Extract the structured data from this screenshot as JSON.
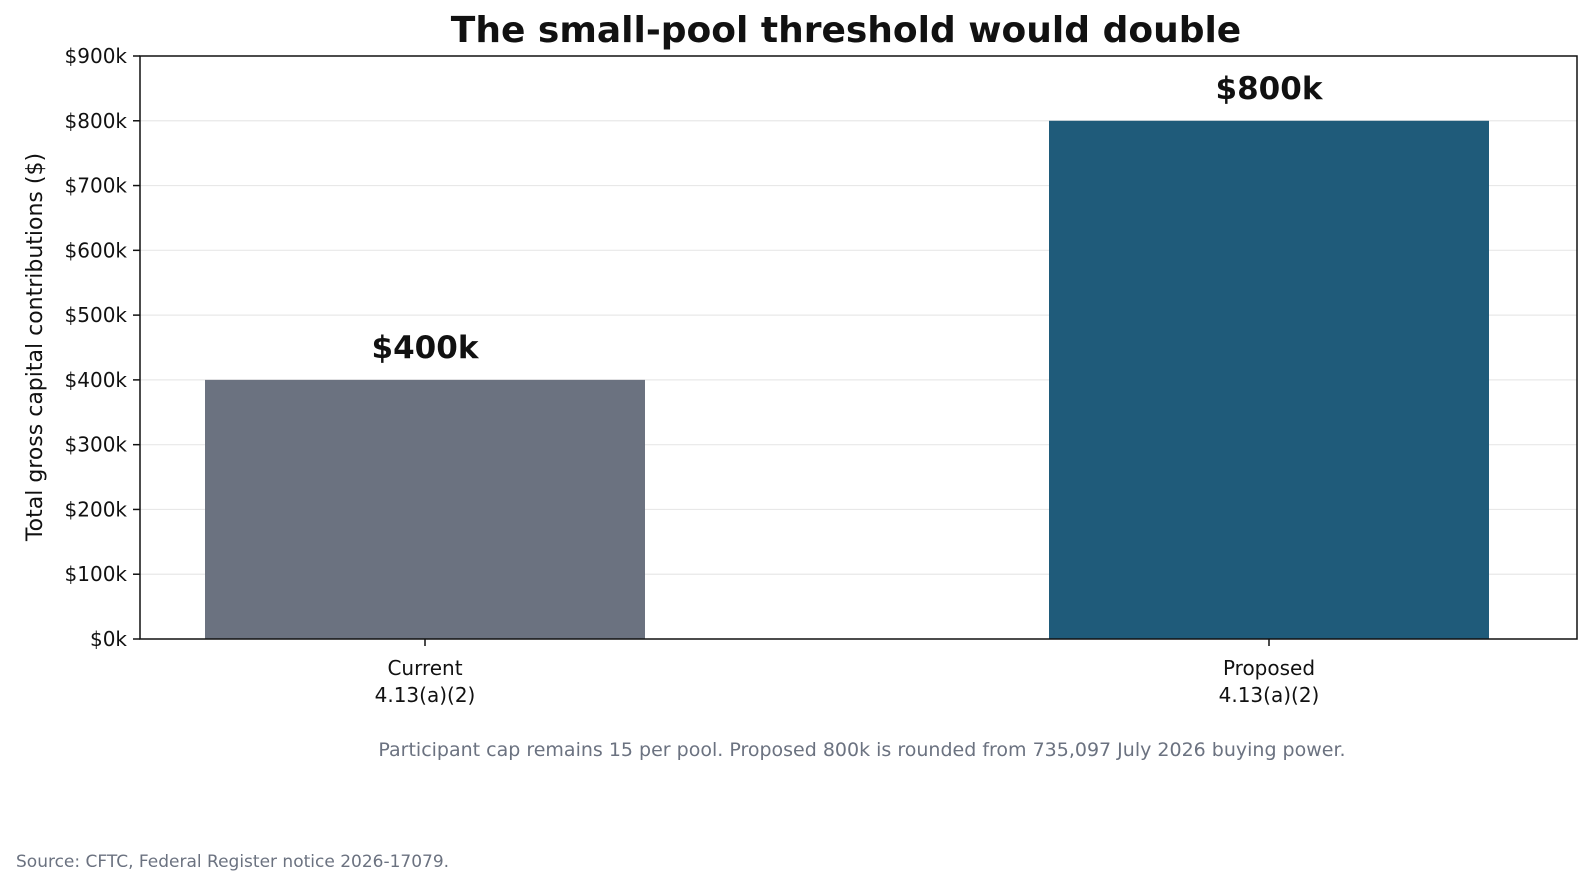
{
  "chart_data": {
    "type": "bar",
    "title": "The small-pool threshold would double",
    "ylabel": "Total gross capital contributions ($)",
    "xlabel": "",
    "ylim": [
      0,
      900000
    ],
    "yticks": [
      0,
      100000,
      200000,
      300000,
      400000,
      500000,
      600000,
      700000,
      800000,
      900000
    ],
    "ytick_labels": [
      "$0k",
      "$100k",
      "$200k",
      "$300k",
      "$400k",
      "$500k",
      "$600k",
      "$700k",
      "$800k",
      "$900k"
    ],
    "categories": [
      {
        "line1": "Current",
        "line2": "4.13(a)(2)"
      },
      {
        "line1": "Proposed",
        "line2": "4.13(a)(2)"
      }
    ],
    "values": [
      400000,
      800000
    ],
    "data_labels": [
      "$400k",
      "$800k"
    ],
    "colors": [
      "#6b7280",
      "#1f5b7a"
    ],
    "grid": "horizontal",
    "note": "Participant cap remains 15 per pool. Proposed 800k is rounded from 735,097 July 2026 buying power.",
    "source": "Source: CFTC, Federal Register notice 2026-17079."
  }
}
